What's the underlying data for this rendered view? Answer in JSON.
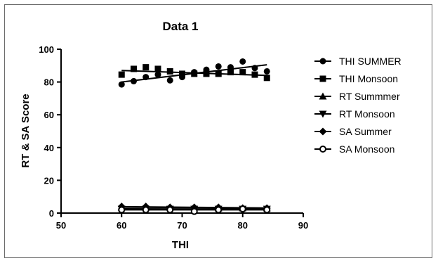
{
  "chart_data": {
    "type": "scatter",
    "title": "Data 1",
    "xlabel": "THI",
    "ylabel": "RT & SA Score",
    "xlim": [
      50,
      90
    ],
    "ylim": [
      0,
      100
    ],
    "xticks": [
      50,
      60,
      70,
      80,
      90
    ],
    "yticks": [
      0,
      20,
      40,
      60,
      80,
      100
    ],
    "xtick_labels": [
      "50",
      "60",
      "70",
      "80",
      "90"
    ],
    "ytick_labels": [
      "0",
      "20",
      "40",
      "60",
      "80",
      "100"
    ],
    "grid": false,
    "legend_position": "right",
    "series": [
      {
        "name": "THI SUMMER",
        "marker": "circle",
        "color": "#000000",
        "x": [
          60,
          62,
          64,
          66,
          68,
          70,
          72,
          74,
          76,
          78,
          80,
          82,
          84
        ],
        "y": [
          78.5,
          80.5,
          83,
          84.5,
          81,
          83,
          86,
          87.5,
          89.5,
          89,
          92.5,
          88.5,
          86.5
        ],
        "trend": [
          [
            60,
            80
          ],
          [
            84,
            90.5
          ]
        ]
      },
      {
        "name": "THI Monsoon",
        "marker": "square",
        "color": "#000000",
        "x": [
          60,
          62,
          64,
          66,
          68,
          70,
          72,
          74,
          76,
          78,
          80,
          82,
          84
        ],
        "y": [
          84.5,
          88,
          89,
          88,
          86.5,
          85,
          85,
          85,
          85,
          86,
          86,
          84.5,
          82.5
        ],
        "trend": [
          [
            60,
            87
          ],
          [
            84,
            84
          ]
        ]
      },
      {
        "name": "RT Summmer",
        "marker": "triangle-up",
        "color": "#000000",
        "x": [
          60,
          64,
          68,
          72,
          76,
          80,
          84
        ],
        "y": [
          3.5,
          3.5,
          3.5,
          3.5,
          3,
          3,
          3
        ],
        "trend": [
          [
            60,
            3.6
          ],
          [
            84,
            3.0
          ]
        ]
      },
      {
        "name": "RT Monsoon",
        "marker": "triangle-down",
        "color": "#000000",
        "x": [
          60,
          64,
          68,
          72,
          76,
          80,
          84
        ],
        "y": [
          2.5,
          2.5,
          2.5,
          2.5,
          2.5,
          2.5,
          2.5
        ],
        "trend": [
          [
            60,
            2.6
          ],
          [
            84,
            2.4
          ]
        ]
      },
      {
        "name": "SA Summer",
        "marker": "diamond",
        "color": "#000000",
        "x": [
          60,
          64,
          68,
          72,
          76,
          80,
          84
        ],
        "y": [
          4,
          4,
          3.5,
          3.5,
          3.5,
          3,
          3
        ],
        "trend": [
          [
            60,
            3.9
          ],
          [
            84,
            3.1
          ]
        ]
      },
      {
        "name": "SA Monsoon",
        "marker": "circle-open",
        "color": "#000000",
        "x": [
          60,
          64,
          68,
          72,
          76,
          80,
          84
        ],
        "y": [
          2,
          2,
          2,
          1,
          2,
          2.5,
          2
        ],
        "trend": [
          [
            60,
            2
          ],
          [
            84,
            2
          ]
        ]
      }
    ]
  }
}
